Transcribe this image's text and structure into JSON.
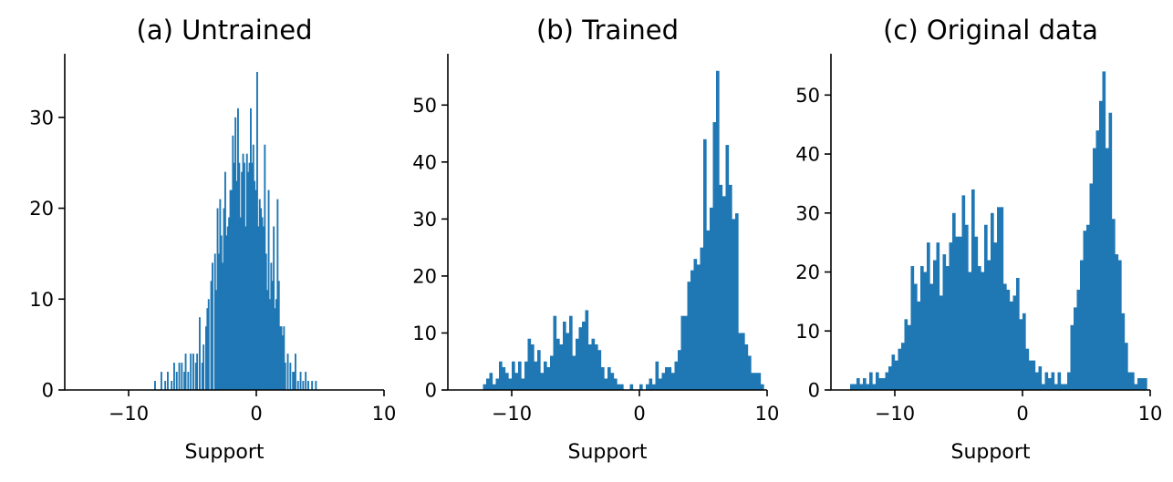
{
  "chart_data": [
    {
      "type": "bar",
      "title": "(a) Untrained",
      "xlabel": "Support",
      "ylabel": "",
      "xlim": [
        -15,
        10
      ],
      "ylim": [
        0,
        37
      ],
      "xticks": [
        -10,
        0,
        10
      ],
      "xtick_labels": [
        "−10",
        "0",
        "10"
      ],
      "yticks": [
        0,
        10,
        20,
        30
      ],
      "ytick_labels": [
        "0",
        "10",
        "20",
        "30"
      ],
      "bin_width": 0.125,
      "color": "#1f77b4",
      "grid": false,
      "bins": [
        [
          -8.0,
          1
        ],
        [
          -7.5,
          2
        ],
        [
          -7.2,
          1
        ],
        [
          -7.0,
          2
        ],
        [
          -6.7,
          1
        ],
        [
          -6.5,
          3
        ],
        [
          -6.3,
          2
        ],
        [
          -6.1,
          3
        ],
        [
          -5.9,
          3
        ],
        [
          -5.7,
          2
        ],
        [
          -5.6,
          4
        ],
        [
          -5.4,
          2
        ],
        [
          -5.2,
          4
        ],
        [
          -5.0,
          4
        ],
        [
          -4.8,
          3
        ],
        [
          -4.7,
          4
        ],
        [
          -4.5,
          8
        ],
        [
          -4.3,
          3
        ],
        [
          -4.2,
          5
        ],
        [
          -4.0,
          7
        ],
        [
          -3.9,
          9
        ],
        [
          -3.8,
          10
        ],
        [
          -3.6,
          12
        ],
        [
          -3.5,
          14
        ],
        [
          -3.3,
          15
        ],
        [
          -3.2,
          11
        ],
        [
          -3.1,
          20
        ],
        [
          -3.0,
          15
        ],
        [
          -2.9,
          21
        ],
        [
          -2.8,
          17
        ],
        [
          -2.7,
          14
        ],
        [
          -2.6,
          20
        ],
        [
          -2.5,
          24
        ],
        [
          -2.4,
          17
        ],
        [
          -2.3,
          18
        ],
        [
          -2.2,
          19
        ],
        [
          -2.1,
          22
        ],
        [
          -2.0,
          22
        ],
        [
          -1.9,
          28
        ],
        [
          -1.8,
          25
        ],
        [
          -1.7,
          30
        ],
        [
          -1.6,
          23
        ],
        [
          -1.5,
          31
        ],
        [
          -1.4,
          25
        ],
        [
          -1.3,
          19
        ],
        [
          -1.2,
          24
        ],
        [
          -1.1,
          26
        ],
        [
          -1.0,
          25
        ],
        [
          -0.9,
          18
        ],
        [
          -0.8,
          26
        ],
        [
          -0.7,
          24
        ],
        [
          -0.6,
          25
        ],
        [
          -0.5,
          31
        ],
        [
          -0.4,
          25
        ],
        [
          -0.3,
          27
        ],
        [
          -0.2,
          23
        ],
        [
          -0.1,
          22
        ],
        [
          0.0,
          35
        ],
        [
          0.1,
          18
        ],
        [
          0.2,
          21
        ],
        [
          0.3,
          20
        ],
        [
          0.4,
          19
        ],
        [
          0.5,
          18
        ],
        [
          0.6,
          27
        ],
        [
          0.7,
          15
        ],
        [
          0.8,
          11
        ],
        [
          0.9,
          22
        ],
        [
          1.0,
          10
        ],
        [
          1.1,
          14
        ],
        [
          1.2,
          12
        ],
        [
          1.3,
          18
        ],
        [
          1.4,
          9
        ],
        [
          1.5,
          10
        ],
        [
          1.6,
          21
        ],
        [
          1.7,
          12
        ],
        [
          1.8,
          7
        ],
        [
          1.9,
          7
        ],
        [
          2.0,
          6
        ],
        [
          2.1,
          7
        ],
        [
          2.2,
          3
        ],
        [
          2.4,
          4
        ],
        [
          2.6,
          3
        ],
        [
          2.8,
          2
        ],
        [
          2.9,
          2
        ],
        [
          3.0,
          4
        ],
        [
          3.2,
          1
        ],
        [
          3.4,
          2
        ],
        [
          3.6,
          1
        ],
        [
          3.8,
          2
        ],
        [
          4.0,
          1
        ],
        [
          4.3,
          1
        ],
        [
          4.6,
          1
        ]
      ]
    },
    {
      "type": "bar",
      "title": "(b) Trained",
      "xlabel": "Support",
      "ylabel": "",
      "xlim": [
        -15,
        10
      ],
      "ylim": [
        0,
        59
      ],
      "xticks": [
        -10,
        0,
        10
      ],
      "xtick_labels": [
        "−10",
        "0",
        "10"
      ],
      "yticks": [
        0,
        10,
        20,
        30,
        40,
        50
      ],
      "ytick_labels": [
        "0",
        "10",
        "20",
        "30",
        "40",
        "50"
      ],
      "bin_width": 0.25,
      "color": "#1f77b4",
      "grid": false,
      "bins": [
        [
          -12.25,
          1
        ],
        [
          -12.0,
          2
        ],
        [
          -11.75,
          3
        ],
        [
          -11.5,
          1
        ],
        [
          -11.25,
          2
        ],
        [
          -11.0,
          5
        ],
        [
          -10.75,
          4
        ],
        [
          -10.5,
          3
        ],
        [
          -10.25,
          2
        ],
        [
          -10.0,
          5
        ],
        [
          -9.75,
          3
        ],
        [
          -9.5,
          5
        ],
        [
          -9.25,
          2
        ],
        [
          -9.0,
          5
        ],
        [
          -8.75,
          9
        ],
        [
          -8.5,
          8
        ],
        [
          -8.25,
          5
        ],
        [
          -8.0,
          7
        ],
        [
          -7.75,
          3
        ],
        [
          -7.5,
          5
        ],
        [
          -7.25,
          4
        ],
        [
          -7.0,
          6
        ],
        [
          -6.75,
          13
        ],
        [
          -6.5,
          9
        ],
        [
          -6.25,
          8
        ],
        [
          -6.0,
          12
        ],
        [
          -5.75,
          10
        ],
        [
          -5.5,
          13
        ],
        [
          -5.25,
          6
        ],
        [
          -5.0,
          9
        ],
        [
          -4.75,
          11
        ],
        [
          -4.5,
          12
        ],
        [
          -4.25,
          14
        ],
        [
          -4.0,
          8
        ],
        [
          -3.75,
          9
        ],
        [
          -3.5,
          8
        ],
        [
          -3.25,
          7
        ],
        [
          -3.0,
          4
        ],
        [
          -2.75,
          2
        ],
        [
          -2.5,
          4
        ],
        [
          -2.25,
          3
        ],
        [
          -2.0,
          2
        ],
        [
          -1.75,
          1
        ],
        [
          -1.5,
          1
        ],
        [
          -0.75,
          1
        ],
        [
          0.0,
          1
        ],
        [
          0.5,
          1
        ],
        [
          0.75,
          2
        ],
        [
          1.0,
          1
        ],
        [
          1.25,
          5
        ],
        [
          1.5,
          2
        ],
        [
          1.75,
          3
        ],
        [
          2.0,
          4
        ],
        [
          2.25,
          4
        ],
        [
          2.5,
          3
        ],
        [
          2.75,
          5
        ],
        [
          3.0,
          7
        ],
        [
          3.25,
          13
        ],
        [
          3.5,
          13
        ],
        [
          3.75,
          19
        ],
        [
          4.0,
          21
        ],
        [
          4.25,
          23
        ],
        [
          4.5,
          22
        ],
        [
          4.75,
          25
        ],
        [
          5.0,
          44
        ],
        [
          5.25,
          28
        ],
        [
          5.5,
          32
        ],
        [
          5.75,
          47
        ],
        [
          6.0,
          56
        ],
        [
          6.25,
          36
        ],
        [
          6.5,
          34
        ],
        [
          6.75,
          32
        ],
        [
          6.75,
          43
        ],
        [
          7.0,
          36
        ],
        [
          7.25,
          30
        ],
        [
          7.5,
          31
        ],
        [
          7.75,
          10
        ],
        [
          8.0,
          10
        ],
        [
          8.25,
          8
        ],
        [
          8.5,
          6
        ],
        [
          8.75,
          3
        ],
        [
          9.0,
          3
        ],
        [
          9.25,
          3
        ],
        [
          9.5,
          1
        ]
      ]
    },
    {
      "type": "bar",
      "title": "(c) Original data",
      "xlabel": "Support",
      "ylabel": "",
      "xlim": [
        -15,
        10
      ],
      "ylim": [
        0,
        57
      ],
      "xticks": [
        -10,
        0,
        10
      ],
      "xtick_labels": [
        "−10",
        "0",
        "10"
      ],
      "yticks": [
        0,
        10,
        20,
        30,
        40,
        50
      ],
      "ytick_labels": [
        "0",
        "10",
        "20",
        "30",
        "40",
        "50"
      ],
      "bin_width": 0.25,
      "color": "#1f77b4",
      "grid": false,
      "bins": [
        [
          -13.5,
          1
        ],
        [
          -13.25,
          1
        ],
        [
          -13.0,
          2
        ],
        [
          -12.75,
          1
        ],
        [
          -12.5,
          2
        ],
        [
          -12.25,
          1
        ],
        [
          -12.0,
          3
        ],
        [
          -11.75,
          1
        ],
        [
          -11.5,
          3
        ],
        [
          -11.25,
          2
        ],
        [
          -11.0,
          2
        ],
        [
          -10.75,
          3
        ],
        [
          -10.5,
          4
        ],
        [
          -10.25,
          6
        ],
        [
          -10.0,
          5
        ],
        [
          -9.75,
          7
        ],
        [
          -9.5,
          8
        ],
        [
          -9.25,
          12
        ],
        [
          -9.0,
          11
        ],
        [
          -8.75,
          21
        ],
        [
          -8.5,
          18
        ],
        [
          -8.25,
          15
        ],
        [
          -8.0,
          21
        ],
        [
          -7.75,
          20
        ],
        [
          -7.5,
          25
        ],
        [
          -7.25,
          18
        ],
        [
          -7.0,
          22
        ],
        [
          -6.75,
          25
        ],
        [
          -6.5,
          16
        ],
        [
          -6.25,
          23
        ],
        [
          -6.0,
          21
        ],
        [
          -5.75,
          25
        ],
        [
          -5.5,
          30
        ],
        [
          -5.25,
          26
        ],
        [
          -5.0,
          26
        ],
        [
          -4.75,
          33
        ],
        [
          -4.5,
          28
        ],
        [
          -4.25,
          20
        ],
        [
          -4.0,
          34
        ],
        [
          -3.75,
          26
        ],
        [
          -3.5,
          21
        ],
        [
          -3.25,
          20
        ],
        [
          -3.0,
          28
        ],
        [
          -2.75,
          22
        ],
        [
          -2.5,
          30
        ],
        [
          -2.25,
          25
        ],
        [
          -2.0,
          31
        ],
        [
          -1.75,
          31
        ],
        [
          -1.5,
          18
        ],
        [
          -1.25,
          17
        ],
        [
          -1.0,
          15
        ],
        [
          -0.75,
          16
        ],
        [
          -0.5,
          19
        ],
        [
          -0.25,
          12
        ],
        [
          0.0,
          13
        ],
        [
          0.25,
          7
        ],
        [
          0.5,
          5
        ],
        [
          0.75,
          5
        ],
        [
          1.0,
          3
        ],
        [
          1.25,
          4
        ],
        [
          1.5,
          1
        ],
        [
          1.75,
          3
        ],
        [
          2.0,
          2
        ],
        [
          2.25,
          3
        ],
        [
          2.5,
          1
        ],
        [
          2.75,
          3
        ],
        [
          3.0,
          1
        ],
        [
          3.25,
          1
        ],
        [
          3.5,
          3
        ],
        [
          3.75,
          11
        ],
        [
          4.0,
          14
        ],
        [
          4.25,
          17
        ],
        [
          4.5,
          22
        ],
        [
          4.75,
          27
        ],
        [
          5.0,
          28
        ],
        [
          5.25,
          35
        ],
        [
          5.5,
          41
        ],
        [
          5.75,
          44
        ],
        [
          6.0,
          49
        ],
        [
          6.25,
          54
        ],
        [
          6.5,
          41
        ],
        [
          6.75,
          47
        ],
        [
          7.0,
          29
        ],
        [
          7.25,
          23
        ],
        [
          7.5,
          22
        ],
        [
          7.75,
          13
        ],
        [
          8.0,
          8
        ],
        [
          8.25,
          3
        ],
        [
          8.5,
          3
        ],
        [
          8.75,
          1
        ],
        [
          9.0,
          2
        ],
        [
          9.25,
          2
        ],
        [
          9.5,
          2
        ]
      ]
    }
  ]
}
